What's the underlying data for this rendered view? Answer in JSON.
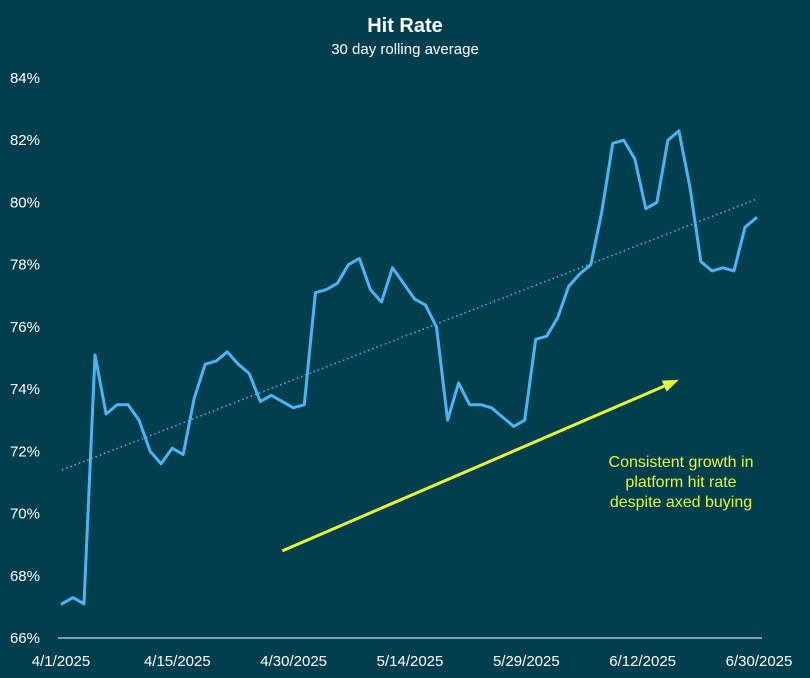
{
  "chart_data": {
    "type": "line",
    "title": "Hit Rate",
    "subtitle": "30 day rolling average",
    "xlabel": "",
    "ylabel": "",
    "ylim": [
      66,
      84
    ],
    "yticks": [
      66,
      68,
      70,
      72,
      74,
      76,
      78,
      80,
      82,
      84
    ],
    "y_tick_format": "%",
    "xlim": [
      "2025-04-01",
      "2025-07-07"
    ],
    "x_tick_labels": [
      "4/1/2025",
      "4/15/2025",
      "4/30/2025",
      "5/14/2025",
      "5/29/2025",
      "6/12/2025",
      "6/30/2025"
    ],
    "x_tick_dates": [
      "2025-04-01",
      "2025-04-15",
      "2025-04-30",
      "2025-05-14",
      "2025-05-29",
      "2025-06-12",
      "2025-06-30"
    ],
    "grid": false,
    "legend": "none",
    "series": [
      {
        "color": "#4db3f5",
        "points": [
          [
            "2025-04-01",
            67.1
          ],
          [
            "2025-04-02",
            67.3
          ],
          [
            "2025-04-03",
            67.1
          ],
          [
            "2025-04-04",
            75.1
          ],
          [
            "2025-04-05",
            73.2
          ],
          [
            "2025-04-06",
            73.5
          ],
          [
            "2025-04-07",
            73.5
          ],
          [
            "2025-04-08",
            73.0
          ],
          [
            "2025-04-09",
            72.0
          ],
          [
            "2025-04-10",
            71.6
          ],
          [
            "2025-04-11",
            72.1
          ],
          [
            "2025-04-12",
            71.9
          ],
          [
            "2025-04-13",
            73.7
          ],
          [
            "2025-04-14",
            74.8
          ],
          [
            "2025-04-15",
            74.9
          ],
          [
            "2025-04-16",
            75.2
          ],
          [
            "2025-04-17",
            74.8
          ],
          [
            "2025-04-18",
            74.5
          ],
          [
            "2025-04-19",
            73.6
          ],
          [
            "2025-04-20",
            73.8
          ],
          [
            "2025-04-21",
            73.6
          ],
          [
            "2025-04-22",
            73.4
          ],
          [
            "2025-04-23",
            73.5
          ],
          [
            "2025-04-24",
            77.1
          ],
          [
            "2025-04-25",
            77.2
          ],
          [
            "2025-04-26",
            77.4
          ],
          [
            "2025-04-27",
            78.0
          ],
          [
            "2025-04-28",
            78.2
          ],
          [
            "2025-04-29",
            77.2
          ],
          [
            "2025-04-30",
            76.8
          ],
          [
            "2025-05-01",
            77.9
          ],
          [
            "2025-05-02",
            77.4
          ],
          [
            "2025-05-03",
            76.9
          ],
          [
            "2025-05-04",
            76.7
          ],
          [
            "2025-05-05",
            76.0
          ],
          [
            "2025-05-06",
            73.0
          ],
          [
            "2025-05-07",
            74.2
          ],
          [
            "2025-05-08",
            73.5
          ],
          [
            "2025-05-09",
            73.5
          ],
          [
            "2025-05-10",
            73.4
          ],
          [
            "2025-05-11",
            73.1
          ],
          [
            "2025-05-12",
            72.8
          ],
          [
            "2025-05-13",
            73.0
          ],
          [
            "2025-05-14",
            75.6
          ],
          [
            "2025-05-15",
            75.7
          ],
          [
            "2025-05-16",
            76.3
          ],
          [
            "2025-05-17",
            77.3
          ],
          [
            "2025-05-18",
            77.7
          ],
          [
            "2025-05-19",
            78.0
          ],
          [
            "2025-05-20",
            79.7
          ],
          [
            "2025-05-21",
            81.9
          ],
          [
            "2025-05-22",
            82.0
          ],
          [
            "2025-05-23",
            81.4
          ],
          [
            "2025-05-24",
            79.8
          ],
          [
            "2025-05-25",
            80.0
          ],
          [
            "2025-05-26",
            82.0
          ],
          [
            "2025-05-27",
            82.3
          ],
          [
            "2025-05-28",
            80.5
          ],
          [
            "2025-05-29",
            78.1
          ],
          [
            "2025-05-30",
            77.8
          ],
          [
            "2025-05-31",
            77.9
          ],
          [
            "2025-06-01",
            77.8
          ],
          [
            "2025-06-02",
            79.2
          ],
          [
            "2025-06-03",
            79.5
          ]
        ]
      }
    ],
    "trendline": {
      "style": "dotted",
      "color": "#4db3f5",
      "start": [
        "2025-04-01",
        71.4
      ],
      "end": [
        "2025-06-03",
        80.1
      ]
    },
    "annotation": {
      "lines": [
        "Consistent growth in",
        "platform hit rate",
        "despite axed buying"
      ],
      "color": "#e6f536",
      "arrow": {
        "from": [
          "2025-04-21",
          68.8
        ],
        "to": [
          "2025-05-27",
          74.3
        ]
      }
    }
  }
}
